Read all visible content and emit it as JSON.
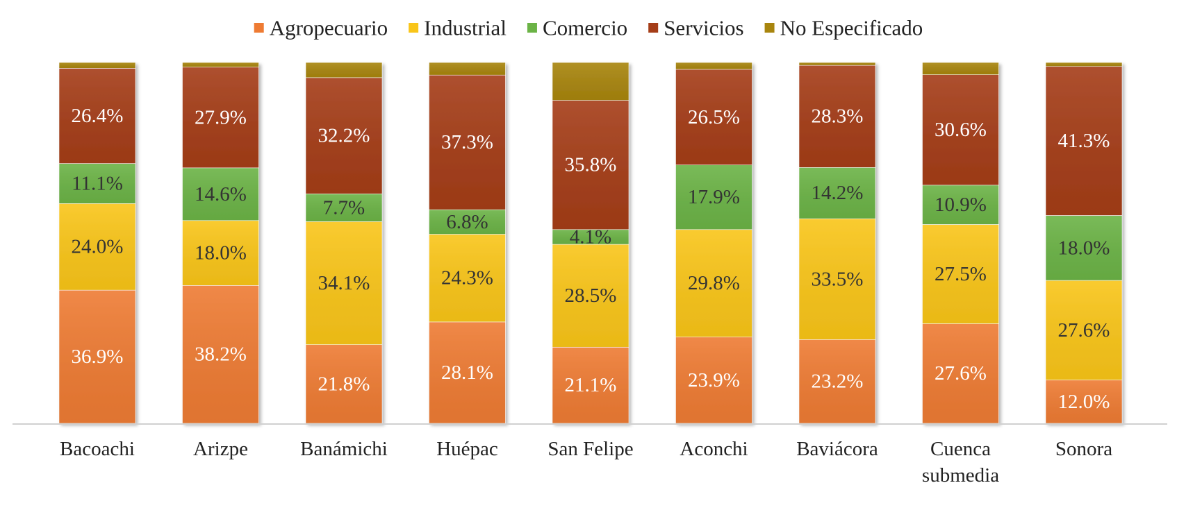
{
  "chart_data": {
    "type": "bar",
    "stacked": true,
    "percent_stacked": true,
    "title": "",
    "xlabel": "",
    "ylabel": "",
    "ylim": [
      0,
      100
    ],
    "grid": false,
    "legend_position": "top",
    "categories": [
      [
        "Bacoachi"
      ],
      [
        "Arizpe"
      ],
      [
        "Banámichi"
      ],
      [
        "Huépac"
      ],
      [
        "San Felipe"
      ],
      [
        "Aconchi"
      ],
      [
        "Baviácora"
      ],
      [
        "Cuenca",
        "submedia"
      ],
      [
        "Sonora"
      ]
    ],
    "series": [
      {
        "name": "Agropecuario",
        "color": "#EE7B33",
        "label_color": "#FFFFFF",
        "values": [
          36.9,
          38.2,
          21.8,
          28.1,
          21.1,
          23.9,
          23.2,
          27.6,
          12.0
        ],
        "labels": [
          "36.9%",
          "38.2%",
          "21.8%",
          "28.1%",
          "21.1%",
          "23.9%",
          "23.2%",
          "27.6%",
          "12.0%"
        ]
      },
      {
        "name": "Industrial",
        "color": "#F9C519",
        "label_color": "#333333",
        "values": [
          24.0,
          18.0,
          34.1,
          24.3,
          28.5,
          29.8,
          33.5,
          27.5,
          27.6
        ],
        "labels": [
          "24.0%",
          "18.0%",
          "34.1%",
          "24.3%",
          "28.5%",
          "29.8%",
          "33.5%",
          "27.5%",
          "27.6%"
        ]
      },
      {
        "name": "Comercio",
        "color": "#6BB346",
        "label_color": "#333333",
        "values": [
          11.1,
          14.6,
          7.7,
          6.8,
          4.1,
          17.9,
          14.2,
          10.9,
          18.0
        ],
        "labels": [
          "11.1%",
          "14.6%",
          "7.7%",
          "6.8%",
          "4.1%",
          "17.9%",
          "14.2%",
          "10.9%",
          "18.0%"
        ]
      },
      {
        "name": "Servicios",
        "color": "#A53D18",
        "label_color": "#FFFFFF",
        "values": [
          26.4,
          27.9,
          32.2,
          37.3,
          35.8,
          26.5,
          28.3,
          30.6,
          41.3
        ],
        "labels": [
          "26.4%",
          "27.9%",
          "32.2%",
          "37.3%",
          "35.8%",
          "26.5%",
          "28.3%",
          "30.6%",
          "41.3%"
        ]
      },
      {
        "name": "No Especificado",
        "color": "#A8850E",
        "label_color": "#333333",
        "values": [
          1.6,
          1.3,
          4.2,
          3.5,
          10.5,
          1.9,
          0.8,
          3.4,
          1.1
        ],
        "labels": [
          "",
          "",
          "",
          "",
          "",
          "",
          "",
          "",
          ""
        ]
      }
    ]
  }
}
